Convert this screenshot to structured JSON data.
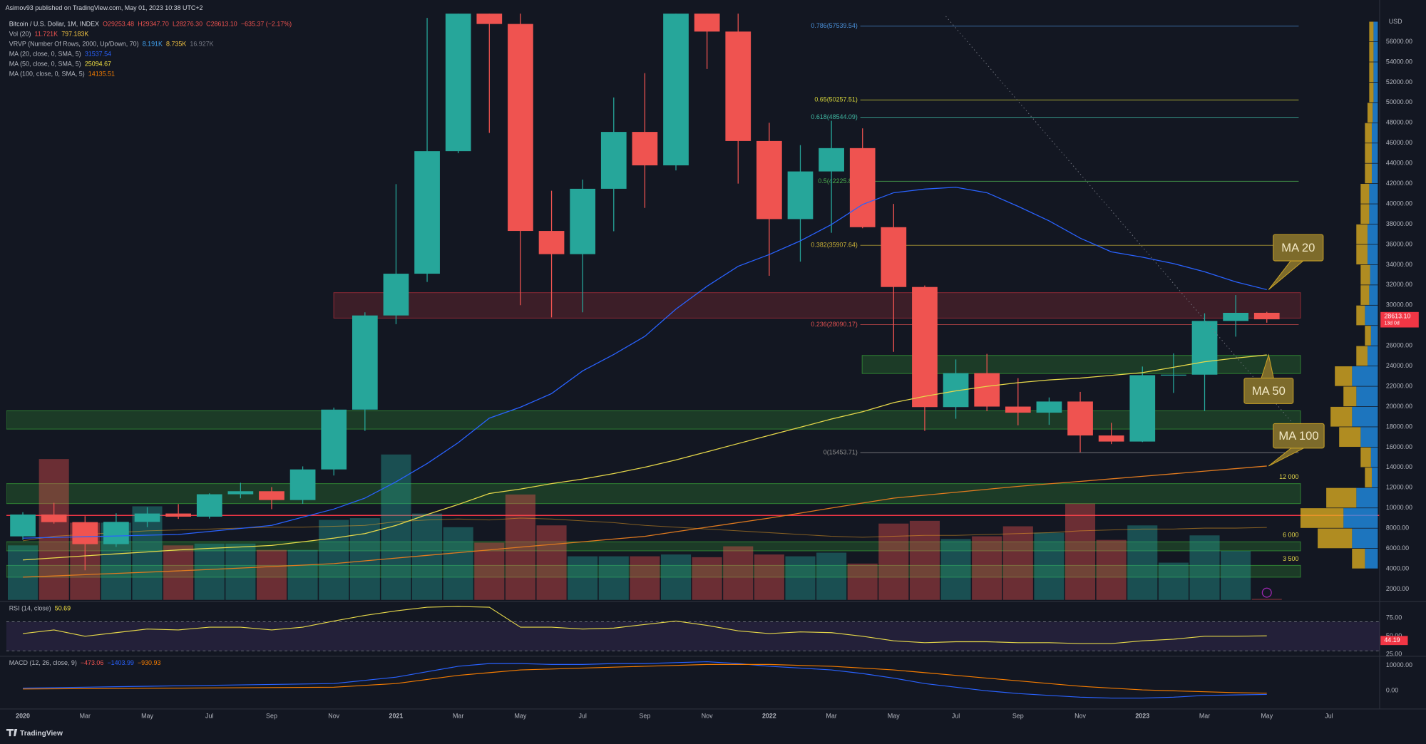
{
  "header": {
    "published": "Asimov93 published on TradingView.com, May 01, 2023 10:38 UTC+2",
    "symbol": "Bitcoin / U.S. Dollar, 1M, INDEX",
    "ohlc": [
      "O29253.48",
      "H29347.70",
      "L28276.30",
      "C28613.10",
      "−635.37 (−2.17%)"
    ],
    "indicators": [
      {
        "name": "Vol (20)",
        "readouts": [
          "11.721K",
          "797.183K"
        ],
        "colors": [
          "#ef5350",
          "#f5c542"
        ]
      },
      {
        "name": "VRVP (Number Of Rows, 2000, Up/Down, 70)",
        "readouts": [
          "8.191K",
          "8.735K",
          "16.927K"
        ],
        "colors": [
          "#42a5f5",
          "#f5c542",
          "#787b86"
        ]
      },
      {
        "name": "MA (20, close, 0, SMA, 5)",
        "readouts": [
          "31537.54"
        ],
        "colors": [
          "#2962ff"
        ]
      },
      {
        "name": "MA (50, close, 0, SMA, 5)",
        "readouts": [
          "25094.67"
        ],
        "colors": [
          "#f5e342"
        ]
      },
      {
        "name": "MA (100, close, 0, SMA, 5)",
        "readouts": [
          "14135.51"
        ],
        "colors": [
          "#f57c00"
        ]
      }
    ],
    "brand": "TradingView"
  },
  "chart_data": [
    {
      "type": "candlestick",
      "up_color": "#26a69a",
      "down_color": "#ef5350",
      "open": [
        7195,
        9350,
        8600,
        6430,
        8625,
        9450,
        9140,
        11350,
        11650,
        10780,
        13800,
        19700,
        28990,
        33110,
        45200,
        58800,
        57750,
        37330,
        35040,
        41490,
        47100,
        43800,
        61300,
        57000,
        46200,
        38500,
        43200,
        45500,
        37700,
        31800,
        19950,
        23300,
        20000,
        19400,
        20500,
        17150,
        16550,
        23100,
        23150,
        28450,
        29253.48
      ],
      "high": [
        9578,
        10500,
        9190,
        9470,
        10070,
        10380,
        11440,
        12480,
        12060,
        14100,
        19900,
        29300,
        41950,
        58350,
        61800,
        64900,
        59500,
        41300,
        42400,
        50500,
        52900,
        67000,
        69000,
        59100,
        48000,
        45800,
        48200,
        47450,
        40000,
        31950,
        24650,
        25200,
        22800,
        20900,
        21450,
        18400,
        23950,
        25250,
        29200,
        31000,
        29347.7
      ],
      "low": [
        6850,
        8450,
        3850,
        6150,
        8110,
        8920,
        8950,
        10950,
        9880,
        10400,
        13200,
        17600,
        28130,
        32300,
        45000,
        47000,
        30000,
        28800,
        29300,
        37300,
        39600,
        43300,
        53300,
        42000,
        32900,
        34300,
        37150,
        37600,
        25400,
        17600,
        18800,
        19550,
        18150,
        18200,
        15500,
        16300,
        16500,
        21350,
        19550,
        26900,
        28276.3
      ],
      "close": [
        9350,
        8600,
        6430,
        8625,
        9450,
        9140,
        11350,
        11650,
        10780,
        13800,
        19700,
        28990,
        33110,
        45200,
        58800,
        57750,
        37330,
        35040,
        41490,
        47100,
        43800,
        61300,
        57000,
        46200,
        38500,
        43200,
        45500,
        37700,
        31800,
        19950,
        23300,
        20000,
        19400,
        20500,
        17150,
        16550,
        23100,
        23150,
        28450,
        29250,
        28613.1
      ],
      "volume": {
        "values": [
          600000,
          1550000,
          850000,
          850000,
          1030000,
          600000,
          620000,
          620000,
          550000,
          550000,
          880000,
          900000,
          1600000,
          950000,
          800000,
          630000,
          1160000,
          820000,
          480000,
          480000,
          480000,
          500000,
          470000,
          590000,
          500000,
          480000,
          520000,
          400000,
          840000,
          870000,
          670000,
          700000,
          810000,
          740000,
          1060000,
          660000,
          820000,
          410000,
          710000,
          540000,
          11721
        ],
        "ma": [
          650000,
          700000,
          720000,
          740000,
          760000,
          770000,
          780000,
          790000,
          800000,
          800000,
          810000,
          820000,
          860000,
          880000,
          890000,
          880000,
          900000,
          890000,
          870000,
          850000,
          820000,
          800000,
          780000,
          760000,
          740000,
          720000,
          700000,
          690000,
          700000,
          710000,
          710000,
          720000,
          730000,
          740000,
          760000,
          770000,
          780000,
          780000,
          790000,
          790000,
          797183
        ],
        "ma_color": "#f5a623"
      },
      "series": [
        {
          "name": "MA 20",
          "color": "#2962ff",
          "values": [
            7020,
            7090,
            7160,
            7230,
            7310,
            7380,
            7680,
            7980,
            8280,
            9090,
            9890,
            10970,
            12580,
            14380,
            16440,
            18860,
            19940,
            21280,
            23520,
            25140,
            26930,
            29620,
            31870,
            33840,
            35000,
            36350,
            37960,
            39940,
            41100,
            41460,
            41640,
            41100,
            39760,
            38320,
            36620,
            35270,
            34740,
            34110,
            33300,
            32310,
            31537.54
          ]
        },
        {
          "name": "MA 50",
          "color": "#e6d84a",
          "values": [
            4870,
            5070,
            5270,
            5470,
            5660,
            5860,
            6010,
            6150,
            6300,
            6660,
            7020,
            7470,
            8280,
            9350,
            10340,
            11420,
            11860,
            12400,
            12850,
            13390,
            14020,
            14740,
            15540,
            16350,
            17160,
            17960,
            18770,
            19490,
            20390,
            21010,
            21550,
            22000,
            22360,
            22630,
            22810,
            23080,
            23350,
            23880,
            24420,
            24780,
            25094.67
          ]
        },
        {
          "name": "MA 100",
          "color": "#e07a1f",
          "values": [
            3170,
            3290,
            3420,
            3540,
            3660,
            3790,
            3930,
            4070,
            4220,
            4360,
            4510,
            4780,
            5050,
            5320,
            5590,
            5860,
            6130,
            6400,
            6660,
            6930,
            7200,
            7650,
            8100,
            8550,
            9000,
            9490,
            9990,
            10480,
            10970,
            11260,
            11550,
            11840,
            12130,
            12380,
            12620,
            12870,
            13120,
            13370,
            13630,
            13880,
            14135.51
          ]
        }
      ],
      "fibs": [
        {
          "value": 57539.54,
          "label": "0.786(57539.54)",
          "color": "#4a90d9"
        },
        {
          "value": 50257.51,
          "label": "0.65(50257.51)",
          "color": "#d4d43a"
        },
        {
          "value": 48544.09,
          "label": "0.618(48544.09)",
          "color": "#3fb5a0"
        },
        {
          "value": 42225.86,
          "label": "0.5(42225.86)",
          "color": "#4caf50"
        },
        {
          "value": 35907.64,
          "label": "0.382(35907.64)",
          "color": "#c9b037"
        },
        {
          "value": 28090.17,
          "label": "0.236(28090.17)",
          "color": "#e05050"
        },
        {
          "value": 15453.71,
          "label": "0(15453.71)",
          "color": "#8c8c8c"
        }
      ],
      "zones": [
        {
          "low": 28730,
          "high": 31240,
          "color": "#8a2a35"
        },
        {
          "low": 23260,
          "high": 25050,
          "color": "#2e7d32"
        },
        {
          "low": 17780,
          "high": 19580,
          "color": "#2e7d32"
        },
        {
          "low": 10430,
          "high": 12400,
          "color": "#2e7d32",
          "label": "12 000"
        },
        {
          "low": 5770,
          "high": 6660,
          "color": "#2e7d32",
          "label": "6 000"
        },
        {
          "low": 3170,
          "high": 4330,
          "color": "#2e7d32",
          "label": "3 500"
        }
      ],
      "levels": [
        {
          "value": 9260,
          "color": "#f23645"
        }
      ],
      "profile": {
        "edges": [
          4000,
          6000,
          8000,
          10000,
          12000,
          14000,
          16000,
          18000,
          20000,
          22000,
          24000,
          26000,
          28000,
          30000,
          32000,
          34000,
          36000,
          38000,
          40000,
          42000,
          44000,
          46000,
          48000,
          50000,
          52000,
          54000,
          56000,
          58000
        ],
        "up": [
          15,
          30,
          40,
          25,
          7,
          8,
          20,
          30,
          25,
          30,
          12,
          8,
          15,
          10,
          9,
          12,
          12,
          10,
          10,
          7,
          7,
          7,
          6,
          5,
          5,
          5,
          5
        ],
        "down": [
          15,
          40,
          50,
          35,
          8,
          12,
          25,
          25,
          15,
          20,
          13,
          7,
          10,
          10,
          11,
          13,
          13,
          10,
          10,
          8,
          8,
          8,
          6,
          5,
          5,
          5,
          5
        ],
        "up_color": "#2196f3",
        "down_color": "#e6b422"
      },
      "last": {
        "value": 28613.1,
        "label": "28613.10",
        "countdown": "13d 0d",
        "color": "#f23645"
      },
      "axis_unit": "USD",
      "xlim": [
        -0.53,
        43.13
      ],
      "ylim": [
        924,
        58770
      ],
      "yticks": [
        {
          "value": 2000,
          "label": "2000.00"
        },
        {
          "value": 4000,
          "label": "4000.00"
        },
        {
          "value": 6000,
          "label": "6000.00"
        },
        {
          "value": 8000,
          "label": "8000.00"
        },
        {
          "value": 10000,
          "label": "10000.00"
        },
        {
          "value": 12000,
          "label": "12000.00"
        },
        {
          "value": 14000,
          "label": "14000.00"
        },
        {
          "value": 16000,
          "label": "16000.00"
        },
        {
          "value": 18000,
          "label": "18000.00"
        },
        {
          "value": 20000,
          "label": "20000.00"
        },
        {
          "value": 22000,
          "label": "22000.00"
        },
        {
          "value": 24000,
          "label": "24000.00"
        },
        {
          "value": 26000,
          "label": "26000.00"
        },
        {
          "value": 28000,
          "label": "28000.00"
        },
        {
          "value": 30000,
          "label": "30000.00"
        },
        {
          "value": 32000,
          "label": "32000.00"
        },
        {
          "value": 34000,
          "label": "34000.00"
        },
        {
          "value": 36000,
          "label": "36000.00"
        },
        {
          "value": 38000,
          "label": "38000.00"
        },
        {
          "value": 40000,
          "label": "40000.00"
        },
        {
          "value": 42000,
          "label": "42000.00"
        },
        {
          "value": 44000,
          "label": "44000.00"
        },
        {
          "value": 46000,
          "label": "46000.00"
        },
        {
          "value": 48000,
          "label": "48000.00"
        },
        {
          "value": 50000,
          "label": "50000.00"
        },
        {
          "value": 52000,
          "label": "52000.00"
        },
        {
          "value": 54000,
          "label": "54000.00"
        },
        {
          "value": 56000,
          "label": "56000.00"
        }
      ],
      "xticks": [
        {
          "value": 0,
          "label": "2020"
        },
        {
          "value": 2,
          "label": "Mar"
        },
        {
          "value": 4,
          "label": "May"
        },
        {
          "value": 6,
          "label": "Jul"
        },
        {
          "value": 8,
          "label": "Sep"
        },
        {
          "value": 10,
          "label": "Nov"
        },
        {
          "value": 12,
          "label": "2021"
        },
        {
          "value": 14,
          "label": "Mar"
        },
        {
          "value": 16,
          "label": "May"
        },
        {
          "value": 18,
          "label": "Jul"
        },
        {
          "value": 20,
          "label": "Sep"
        },
        {
          "value": 22,
          "label": "Nov"
        },
        {
          "value": 24,
          "label": "2022"
        },
        {
          "value": 26,
          "label": "Mar"
        },
        {
          "value": 28,
          "label": "May"
        },
        {
          "value": 30,
          "label": "Jul"
        },
        {
          "value": 32,
          "label": "Sep"
        },
        {
          "value": 34,
          "label": "Nov"
        },
        {
          "value": 36,
          "label": "2023"
        },
        {
          "value": 38,
          "label": "Mar"
        },
        {
          "value": 40,
          "label": "May"
        },
        {
          "value": 42,
          "label": "Jul"
        }
      ]
    },
    {
      "type": "line",
      "title": "RSI (14, close)",
      "readout": "50.69",
      "readout_color": "#f5e342",
      "series": [
        {
          "color": "#e6d84a",
          "values": [
            53.75,
            58.75,
            50,
            55,
            60,
            58.75,
            62.5,
            62.5,
            58.75,
            62.5,
            71,
            78.7,
            85,
            90,
            91,
            90,
            62.5,
            62.5,
            60,
            61.25,
            66.25,
            71,
            65,
            57.5,
            53.75,
            56,
            55,
            50,
            43.75,
            41.25,
            42.5,
            42.5,
            41.25,
            41.25,
            40,
            40,
            43.75,
            46,
            50,
            50,
            50.69
          ]
        }
      ],
      "band": [
        30,
        70
      ],
      "band_color": "#7e57c2",
      "marker": {
        "value": 44.19,
        "color": "#f23645"
      },
      "ylim": [
        23.75,
        96.25
      ],
      "yticks": [
        {
          "value": 75,
          "label": "75.00"
        },
        {
          "value": 50,
          "label": "50.00"
        },
        {
          "value": 25,
          "label": "25.00"
        }
      ]
    },
    {
      "type": "line",
      "title": "MACD (12, 26, close, 9)",
      "readouts": [
        "−473.06",
        "−1403.99",
        "−930.93"
      ],
      "readout_colors": [
        "#ef5350",
        "#2962ff",
        "#f57c00"
      ],
      "series": [
        {
          "color": "#2962ff",
          "values": [
            1070,
            1250,
            1430,
            1610,
            1790,
            1970,
            2150,
            2330,
            2500,
            2680,
            2860,
            4110,
            5360,
            7500,
            9640,
            10710,
            10710,
            10360,
            10360,
            10710,
            10710,
            11070,
            11430,
            10710,
            9640,
            8930,
            8210,
            6790,
            5000,
            2860,
            1430,
            0,
            -1070,
            -1790,
            -2500,
            -2860,
            -2860,
            -2500,
            -1790,
            -1610,
            -1403.99
          ]
        },
        {
          "color": "#f57c00",
          "values": [
            710,
            780,
            860,
            930,
            1000,
            1070,
            1150,
            1220,
            1290,
            1360,
            1430,
            2140,
            2860,
            4460,
            6070,
            7140,
            8210,
            8570,
            8930,
            9290,
            9640,
            10000,
            10360,
            10360,
            10360,
            10000,
            9640,
            8930,
            8210,
            7140,
            6070,
            5000,
            3930,
            2860,
            1790,
            1070,
            360,
            0,
            -360,
            -710,
            -930.93
          ]
        }
      ],
      "ylim": [
        -7140,
        13210
      ],
      "yticks": [
        {
          "value": 10000,
          "label": "10000.00"
        },
        {
          "value": 0,
          "label": "0.00"
        }
      ]
    }
  ]
}
